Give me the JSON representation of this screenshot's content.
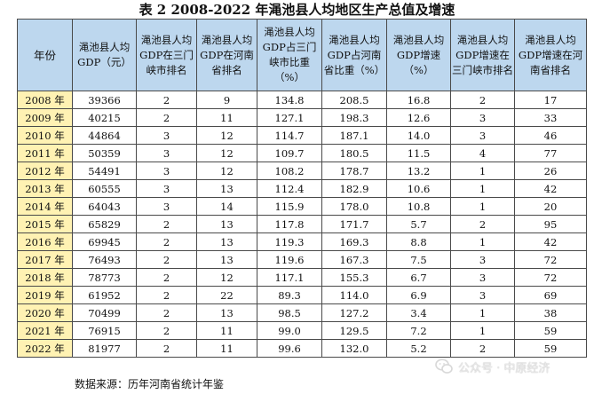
{
  "title": "表 2  2008-2022 年渑池县人均地区生产总值及增速",
  "table": {
    "headers": [
      "年份",
      "渑池县人均GDP（元）",
      "渑池县人均GDP在三门峡市排名",
      "渑池县人均GDP在河南省排名",
      "渑池县人均GDP占三门峡市比重（%）",
      "渑池县人均GDP占河南省比重（%）",
      "渑池县人均GDP增速（%）",
      "渑池县人均GDP增速在三门峡市排名",
      "渑池县人均GDP增速在河南省排名"
    ],
    "rows": [
      [
        "2008 年",
        "39366",
        "2",
        "9",
        "134.8",
        "208.5",
        "16.8",
        "2",
        "17"
      ],
      [
        "2009 年",
        "40215",
        "2",
        "11",
        "127.1",
        "198.3",
        "12.6",
        "3",
        "33"
      ],
      [
        "2010 年",
        "44864",
        "3",
        "12",
        "114.7",
        "187.1",
        "14.0",
        "3",
        "46"
      ],
      [
        "2011 年",
        "50359",
        "3",
        "12",
        "109.7",
        "180.5",
        "11.5",
        "4",
        "77"
      ],
      [
        "2012 年",
        "54491",
        "3",
        "12",
        "108.2",
        "178.7",
        "13.2",
        "1",
        "26"
      ],
      [
        "2013 年",
        "60555",
        "3",
        "13",
        "112.4",
        "182.9",
        "10.6",
        "1",
        "42"
      ],
      [
        "2014 年",
        "64043",
        "3",
        "14",
        "115.9",
        "178.0",
        "10.8",
        "1",
        "20"
      ],
      [
        "2015 年",
        "65829",
        "2",
        "13",
        "117.8",
        "171.7",
        "5.7",
        "2",
        "95"
      ],
      [
        "2016 年",
        "69945",
        "2",
        "13",
        "119.3",
        "169.3",
        "8.8",
        "1",
        "42"
      ],
      [
        "2017 年",
        "76493",
        "2",
        "13",
        "119.6",
        "167.3",
        "7.5",
        "3",
        "72"
      ],
      [
        "2018 年",
        "78773",
        "2",
        "12",
        "117.1",
        "155.3",
        "6.7",
        "3",
        "72"
      ],
      [
        "2019 年",
        "61952",
        "2",
        "22",
        "89.3",
        "114.0",
        "6.9",
        "3",
        "69"
      ],
      [
        "2020 年",
        "70499",
        "2",
        "13",
        "98.5",
        "127.2",
        "3.4",
        "1",
        "38"
      ],
      [
        "2021 年",
        "76915",
        "2",
        "11",
        "99.0",
        "129.5",
        "7.2",
        "1",
        "59"
      ],
      [
        "2022 年",
        "81977",
        "2",
        "11",
        "99.6",
        "132.0",
        "5.2",
        "2",
        "59"
      ]
    ]
  },
  "source_note": "数据来源：历年河南省统计年鉴",
  "watermark": {
    "text": "公众号 · 中原经济",
    "icon": "wechat-icon"
  },
  "colors": {
    "header_bg": "#bdd7ee",
    "year_bg": "#fff2b3",
    "border": "#4a4a4a"
  }
}
